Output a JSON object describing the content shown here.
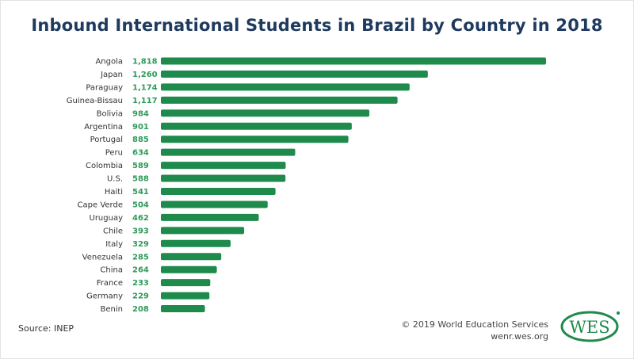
{
  "chart_data": {
    "type": "bar",
    "orientation": "horizontal",
    "title": "Inbound International Students in Brazil by Country in 2018",
    "categories": [
      "Angola",
      "Japan",
      "Paraguay",
      "Guinea-Bissau",
      "Bolivia",
      "Argentina",
      "Portugal",
      "Peru",
      "Colombia",
      "U.S.",
      "Haiti",
      "Cape Verde",
      "Uruguay",
      "Chile",
      "Italy",
      "Venezuela",
      "China",
      "France",
      "Germany",
      "Benin"
    ],
    "values": [
      1818,
      1260,
      1174,
      1117,
      984,
      901,
      885,
      634,
      589,
      588,
      541,
      504,
      462,
      393,
      329,
      285,
      264,
      233,
      229,
      208
    ],
    "value_labels": [
      "1,818",
      "1,260",
      "1,174",
      "1,117",
      "984",
      "901",
      "885",
      "634",
      "589",
      "588",
      "541",
      "504",
      "462",
      "393",
      "329",
      "285",
      "264",
      "233",
      "229",
      "208"
    ],
    "xlim": [
      0,
      1818
    ],
    "grid": false,
    "colors": {
      "bar": "#1e8a4c",
      "value_text": "#2e9a5a",
      "title": "#1f3a5f"
    }
  },
  "footer": {
    "source": "Source: INEP",
    "copyright": "© 2019 World Education Services",
    "url": "wenr.wes.org",
    "logo_text": "WES"
  }
}
